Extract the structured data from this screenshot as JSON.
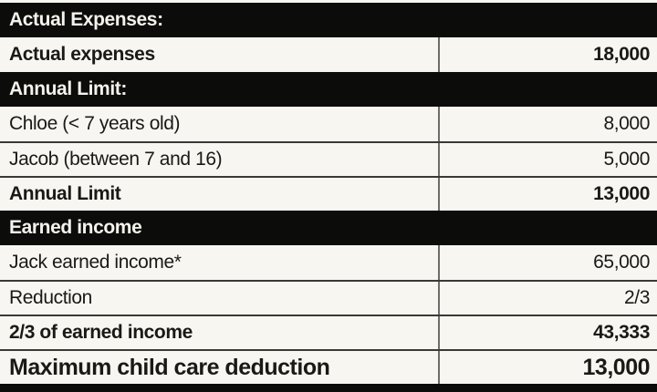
{
  "colors": {
    "band_bg": "#0c0c0b",
    "band_text": "#f4f2ec",
    "row_bg": "#f8f6f1",
    "row_text": "#1a1916",
    "grid_line": "#3a3935",
    "divider": "#6e6c66"
  },
  "table": {
    "rows": [
      {
        "type": "band",
        "label": "Actual Expenses:"
      },
      {
        "type": "data",
        "label": "Actual expenses",
        "value": "18,000",
        "bold": true
      },
      {
        "type": "band",
        "label": "Annual Limit:"
      },
      {
        "type": "data",
        "label": "Chloe (< 7 years old)",
        "value": "8,000",
        "bold": false
      },
      {
        "type": "data",
        "label": "Jacob (between 7 and 16)",
        "value": "5,000",
        "bold": false
      },
      {
        "type": "data",
        "label": "Annual Limit",
        "value": "13,000",
        "bold": true
      },
      {
        "type": "band",
        "label": "Earned income"
      },
      {
        "type": "data",
        "label": "Jack earned income*",
        "value": "65,000",
        "bold": false
      },
      {
        "type": "data",
        "label": "Reduction",
        "value": "2/3",
        "bold": false
      },
      {
        "type": "data",
        "label": "2/3 of earned income",
        "value": "43,333",
        "bold": true
      },
      {
        "type": "data",
        "label": "Maximum child care deduction",
        "value": "13,000",
        "bold": true,
        "emphasis": true
      }
    ]
  }
}
